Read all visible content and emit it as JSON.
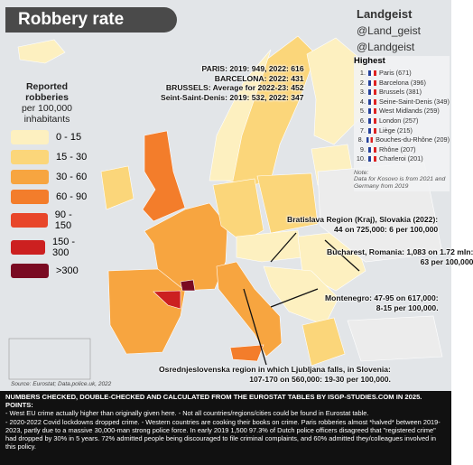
{
  "header": {
    "title": "Robbery rate",
    "social": [
      "Landgeist",
      "@Land_geist",
      "@Landgeist"
    ]
  },
  "legend": {
    "title": [
      "Reported robberies",
      "per 100,000",
      "inhabitants"
    ],
    "items": [
      {
        "label": "0 - 15",
        "color": "#fdf0c0"
      },
      {
        "label": "15 - 30",
        "color": "#fbd67a"
      },
      {
        "label": "30 - 60",
        "color": "#f7a540"
      },
      {
        "label": "60 - 90",
        "color": "#f37d2b"
      },
      {
        "label": "90 - 150",
        "color": "#e8462a"
      },
      {
        "label": "150 - 300",
        "color": "#cc2020"
      },
      {
        "label": ">300",
        "color": "#7a0a22"
      }
    ]
  },
  "highest": {
    "title": "Highest",
    "items": [
      {
        "rank": "1.",
        "text": "Paris (671)"
      },
      {
        "rank": "2.",
        "text": "Barcelona (396)"
      },
      {
        "rank": "3.",
        "text": "Brussels (381)"
      },
      {
        "rank": "4.",
        "text": "Seine-Saint-Denis (349)"
      },
      {
        "rank": "5.",
        "text": "West Midlands (259)"
      },
      {
        "rank": "6.",
        "text": "London (257)"
      },
      {
        "rank": "7.",
        "text": "Liège (215)"
      },
      {
        "rank": "8.",
        "text": "Bouches-du-Rhône (209)"
      },
      {
        "rank": "9.",
        "text": "Rhône (207)"
      },
      {
        "rank": "10.",
        "text": "Charleroi (201)"
      }
    ],
    "note_title": "Note:",
    "note": "Data for Kosovo is from 2021 and Germany from 2019"
  },
  "annotations": {
    "west": [
      "PARIS: 2019: 949, 2022: 616",
      "BARCELONA: 2022: 431",
      "BRUSSELS: Average for 2022-23: 452",
      "Seint-Saint-Denis: 2019: 532, 2022: 347"
    ],
    "bratislava": [
      "Bratislava Region (Kraj), Slovakia (2022):",
      "44 on 725,000: 6 per 100,000"
    ],
    "bucharest": [
      "Bucharest, Romania: 1,083 on 1.72 mln:",
      "63 per 100,000"
    ],
    "montenegro": [
      "Montenegro: 47-95 on 617,000:",
      "8-15 per 100,000."
    ],
    "slovenia": [
      "Osrednjeslovenska region in which Ljubljana falls, in Slovenia:",
      "107-170 on 560,000: 19-30 per 100,000."
    ]
  },
  "source": "Source: Eurostat; Data.police.uk, 2022",
  "footer": {
    "heading": "NUMBERS CHECKED, DOUBLE-CHECKED AND CALCULATED FROM THE EUROSTAT TABLES BY ISGP-STUDIES.COM IN 2025. POINTS:",
    "points": [
      "- West EU crime actually higher than originally given here.   - Not all countries/regions/cities could be found in Eurostat table.",
      "- 2020-2022 Covid lockdowns dropped crime.   - Western countries are cooking their books on crime. Paris robberies almost *halved* between 2019-2023, partly due to a massive 30,000-man strong police force.  In early 2019 1,500 97.3% of Dutch police officers disagreed that \"registered crime\" had dropped by 30% in 5 years. 72% admitted people being discouraged to file criminal complaints, and 60% admitted they/colleagues involved in this policy."
    ]
  }
}
